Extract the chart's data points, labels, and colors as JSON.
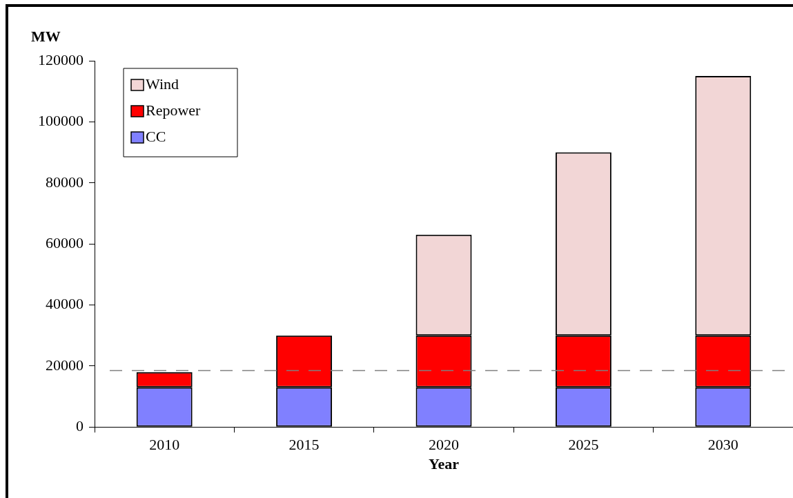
{
  "chart_data": {
    "type": "bar",
    "stacked": true,
    "xlabel": "Year",
    "ylabel": "MW",
    "categories": [
      "2010",
      "2015",
      "2020",
      "2025",
      "2030"
    ],
    "series": [
      {
        "name": "CC",
        "color": "#8080ff",
        "values": [
          13000,
          13000,
          13000,
          13000,
          13000
        ]
      },
      {
        "name": "Repower",
        "color": "#ff0000",
        "values": [
          5000,
          17000,
          17000,
          17000,
          17000
        ]
      },
      {
        "name": "Wind",
        "color": "#f2d6d6",
        "values": [
          null,
          null,
          33000,
          60000,
          85000
        ]
      }
    ],
    "ylim": [
      0,
      120000
    ],
    "yticks": [
      0,
      20000,
      40000,
      60000,
      80000,
      100000,
      120000
    ],
    "ref_lines": [
      {
        "axis": "y",
        "value": 18500,
        "color": "#808080",
        "line_style": "dashed"
      }
    ],
    "legend": "top left",
    "grid": false
  }
}
